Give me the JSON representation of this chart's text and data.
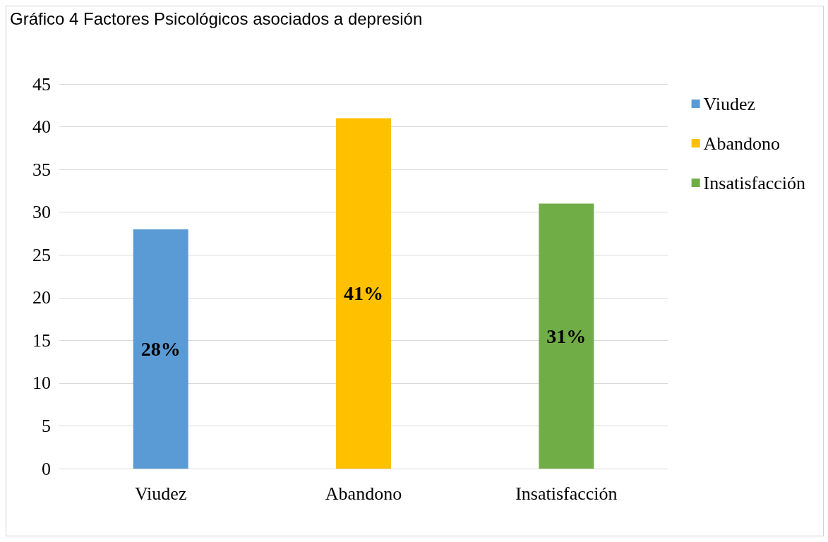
{
  "chart_data": {
    "type": "bar",
    "title": "Gráfico 4 Factores Psicológicos asociados a depresión",
    "categories": [
      "Viudez",
      "Abandono",
      "Insatisfacción"
    ],
    "series": [
      {
        "name": "Viudez",
        "color": "#5b9bd5",
        "values": [
          28,
          null,
          null
        ],
        "value_labels": [
          "28%",
          null,
          null
        ]
      },
      {
        "name": "Abandono",
        "color": "#ffc000",
        "values": [
          null,
          41,
          null
        ],
        "value_labels": [
          null,
          "41%",
          null
        ]
      },
      {
        "name": "Insatisfacción",
        "color": "#70ad47",
        "values": [
          null,
          null,
          31
        ],
        "value_labels": [
          null,
          null,
          "31%"
        ]
      }
    ],
    "ylim": [
      0,
      45
    ],
    "yticks": [
      0,
      5,
      10,
      15,
      20,
      25,
      30,
      35,
      40,
      45
    ],
    "grid": "y",
    "legend": "top right"
  }
}
